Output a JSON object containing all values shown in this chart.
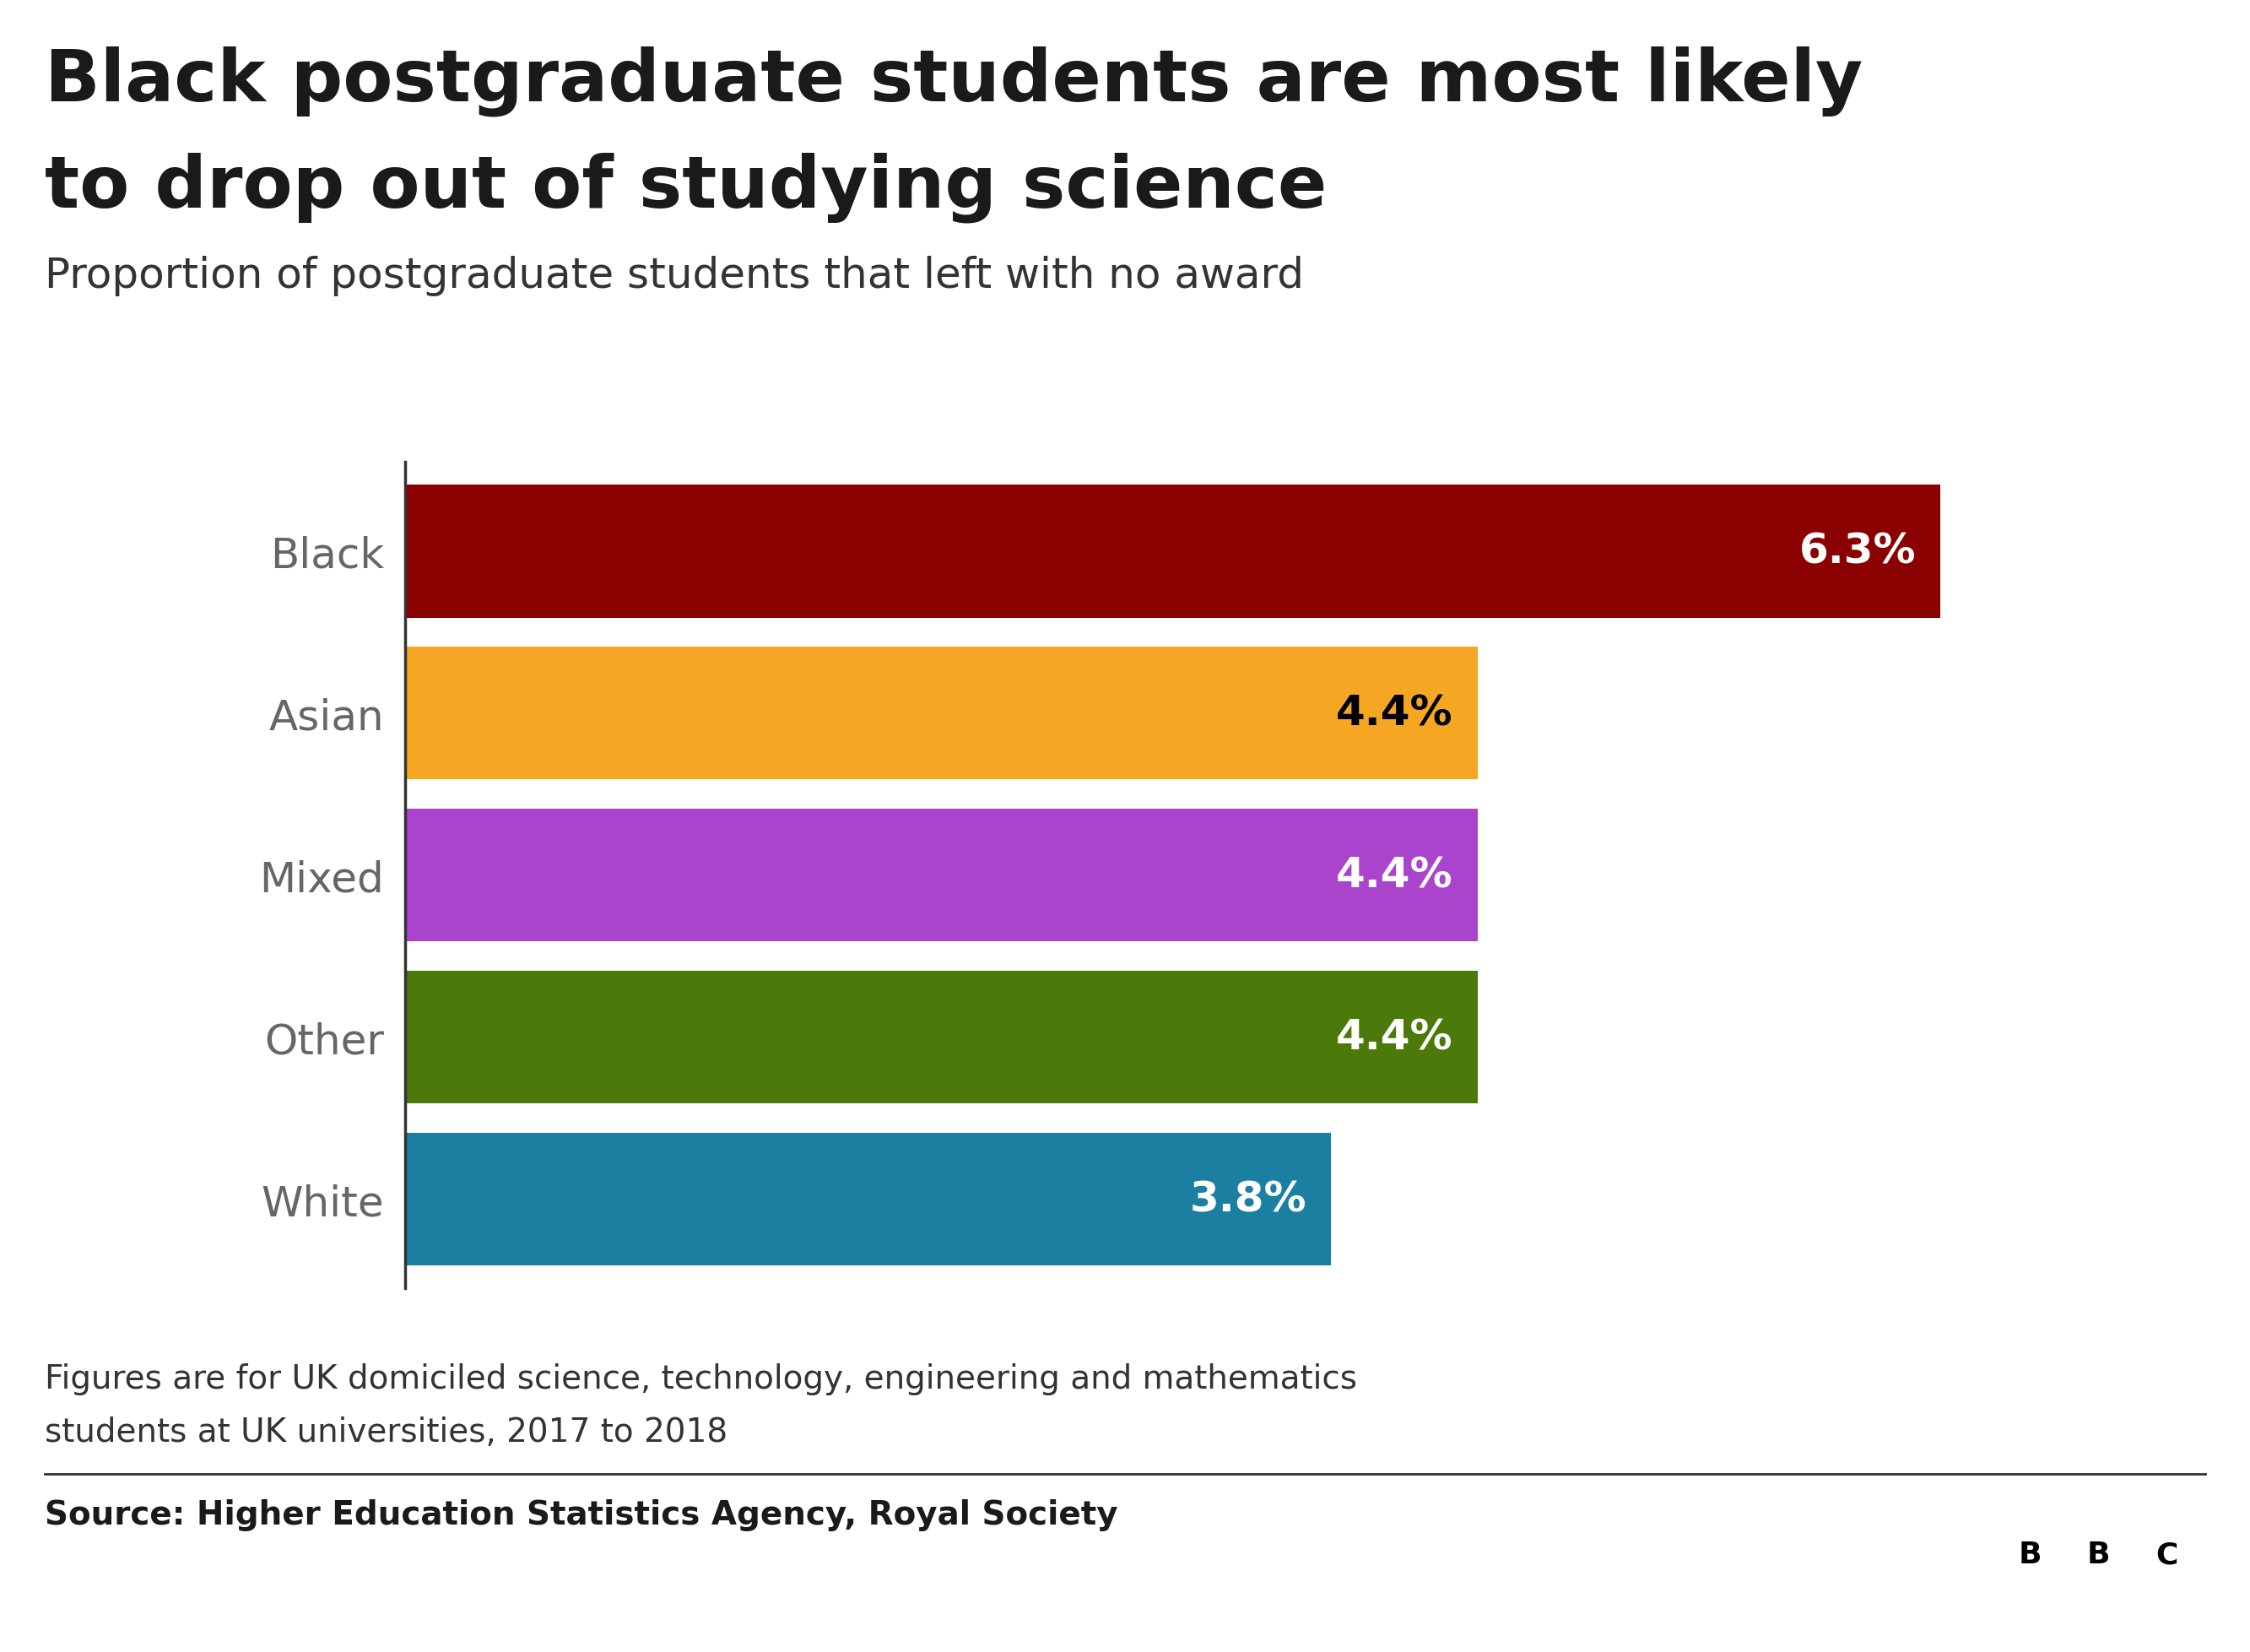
{
  "title_line1": "Black postgraduate students are most likely",
  "title_line2": "to drop out of studying science",
  "subtitle": "Proportion of postgraduate students that left with no award",
  "categories": [
    "Black",
    "Asian",
    "Mixed",
    "Other",
    "White"
  ],
  "values": [
    6.3,
    4.4,
    4.4,
    4.4,
    3.8
  ],
  "bar_colors": [
    "#8B0000",
    "#F5A623",
    "#AA44CC",
    "#4B7A0A",
    "#1A7FA0"
  ],
  "label_values": [
    "6.3%",
    "4.4%",
    "4.4%",
    "4.4%",
    "3.8%"
  ],
  "label_colors": [
    "#ffffff",
    "#000000",
    "#ffffff",
    "#ffffff",
    "#ffffff"
  ],
  "footnote_line1": "Figures are for UK domiciled science, technology, engineering and mathematics",
  "footnote_line2": "students at UK universities, 2017 to 2018",
  "source": "Source: Higher Education Statistics Agency, Royal Society",
  "xlim": [
    0,
    7.2
  ],
  "background_color": "#ffffff",
  "title_color": "#1a1a1a",
  "category_label_color": "#666666"
}
